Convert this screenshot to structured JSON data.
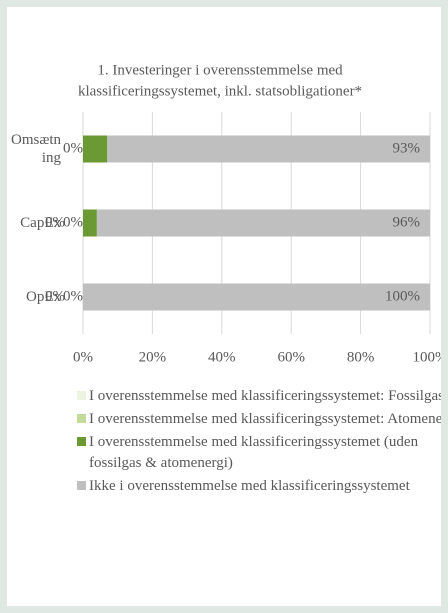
{
  "chart_data": {
    "type": "stacked_bar_horizontal",
    "title": [
      "1. Investeringer i overensstemmelse med",
      "klassificeringssystemet, inkl. statsobligationer*"
    ],
    "categories": [
      "Omsætning",
      "CapEx",
      "OpEx"
    ],
    "series": [
      {
        "name": "I overensstemmelse med klassificeringssystemet: Fossilgas",
        "color": "#eef3e1",
        "values": [
          0,
          0,
          0
        ],
        "value_labels": [
          "0%",
          "0%",
          "0%"
        ]
      },
      {
        "name": "I overensstemmelse med klassificeringssystemet: Atomenergi",
        "color": "#c4da99",
        "values": [
          0,
          0,
          0
        ],
        "value_labels": [
          null,
          "0%",
          "0%"
        ]
      },
      {
        "name": "I overensstemmelse med klassificeringssystemet (uden fossilgas & atomenergi)",
        "color": "#6b9a35",
        "values": [
          7,
          4,
          0
        ],
        "value_labels": [
          null,
          "4%",
          null
        ]
      },
      {
        "name": "Ikke i overensstemmelse med klassificeringssystemet",
        "color": "#bfbfbf",
        "values": [
          93,
          96,
          100
        ],
        "value_labels": [
          "93%",
          "96%",
          "100%"
        ]
      }
    ],
    "xlim": [
      0,
      100
    ],
    "xticks": [
      {
        "value": 0,
        "label": "0%"
      },
      {
        "value": 20,
        "label": "20%"
      },
      {
        "value": 40,
        "label": "40%"
      },
      {
        "value": 60,
        "label": "60%"
      },
      {
        "value": 80,
        "label": "80%"
      },
      {
        "value": 100,
        "label": "100%"
      }
    ],
    "grid": true
  }
}
